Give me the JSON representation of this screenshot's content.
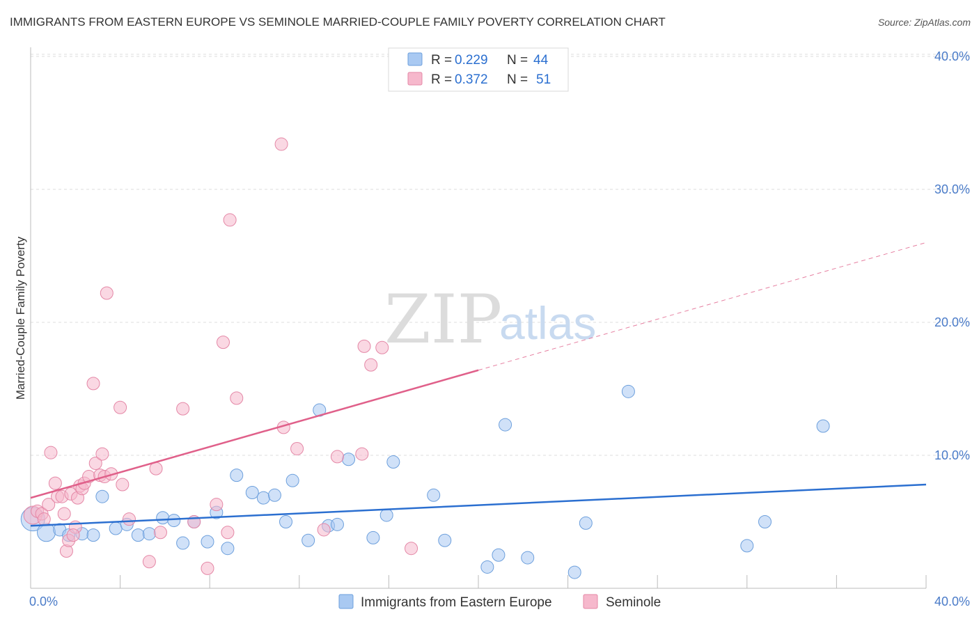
{
  "title": "IMMIGRANTS FROM EASTERN EUROPE VS SEMINOLE MARRIED-COUPLE FAMILY POVERTY CORRELATION CHART",
  "source": "Source: ZipAtlas.com",
  "watermark": {
    "zip": "ZIP",
    "atlas": "atlas"
  },
  "colors": {
    "blue_fill": "#a9c9f2",
    "blue_stroke": "#6c9fdc",
    "blue_line": "#2b6fd0",
    "pink_fill": "#f6b8cc",
    "pink_stroke": "#e487a6",
    "pink_line": "#e0608a",
    "grid": "#dddddd",
    "tick_text": "#4a7bc8"
  },
  "legend": {
    "rows": [
      {
        "r_label": "R =",
        "r_value": "0.229",
        "n_label": "N =",
        "n_value": "44",
        "series": "blue"
      },
      {
        "r_label": "R =",
        "r_value": "0.372",
        "n_label": "N =",
        "n_value": "51",
        "series": "pink"
      }
    ]
  },
  "bottom_legend": [
    {
      "label": "Immigrants from Eastern Europe",
      "series": "blue"
    },
    {
      "label": "Seminole",
      "series": "pink"
    }
  ],
  "chart_data": {
    "type": "scatter",
    "title": "IMMIGRANTS FROM EASTERN EUROPE VS SEMINOLE MARRIED-COUPLE FAMILY POVERTY CORRELATION CHART",
    "xlabel": "",
    "ylabel": "Married-Couple Family Poverty",
    "xlim": [
      0,
      40
    ],
    "ylim": [
      0,
      42
    ],
    "x_tick_labels": [
      {
        "value": 0,
        "label": "0.0%"
      },
      {
        "value": 40,
        "label": "40.0%"
      }
    ],
    "y_tick_labels": [
      {
        "value": 10,
        "label": "10.0%"
      },
      {
        "value": 20,
        "label": "20.0%"
      },
      {
        "value": 30,
        "label": "30.0%"
      },
      {
        "value": 40,
        "label": "40.0%"
      }
    ],
    "x_minor_ticks": [
      0,
      4,
      8,
      12,
      16,
      20,
      24,
      28,
      32,
      36,
      40
    ],
    "grid": true,
    "series": [
      {
        "name": "Immigrants from Eastern Europe",
        "color": "blue",
        "R": 0.229,
        "N": 44,
        "trend": {
          "x1": 0,
          "y1": 4.7,
          "x2": 40,
          "y2": 7.8,
          "dashed_from": null
        },
        "points": [
          {
            "x": 0.1,
            "y": 5.2,
            "s": 3
          },
          {
            "x": 0.7,
            "y": 4.2,
            "s": 2
          },
          {
            "x": 1.3,
            "y": 4.4,
            "s": 1
          },
          {
            "x": 1.7,
            "y": 4.0,
            "s": 1
          },
          {
            "x": 2.3,
            "y": 4.1,
            "s": 1
          },
          {
            "x": 2.8,
            "y": 4.0,
            "s": 1
          },
          {
            "x": 3.2,
            "y": 6.9,
            "s": 1
          },
          {
            "x": 3.8,
            "y": 4.5,
            "s": 1
          },
          {
            "x": 4.3,
            "y": 4.8,
            "s": 1
          },
          {
            "x": 4.8,
            "y": 4.0,
            "s": 1
          },
          {
            "x": 5.3,
            "y": 4.1,
            "s": 1
          },
          {
            "x": 5.9,
            "y": 5.3,
            "s": 1
          },
          {
            "x": 6.4,
            "y": 5.1,
            "s": 1
          },
          {
            "x": 6.8,
            "y": 3.4,
            "s": 1
          },
          {
            "x": 7.3,
            "y": 5.0,
            "s": 1
          },
          {
            "x": 7.9,
            "y": 3.5,
            "s": 1
          },
          {
            "x": 8.3,
            "y": 5.7,
            "s": 1
          },
          {
            "x": 8.8,
            "y": 3.0,
            "s": 1
          },
          {
            "x": 9.2,
            "y": 8.5,
            "s": 1
          },
          {
            "x": 9.9,
            "y": 7.2,
            "s": 1
          },
          {
            "x": 10.4,
            "y": 6.8,
            "s": 1
          },
          {
            "x": 10.9,
            "y": 7.0,
            "s": 1
          },
          {
            "x": 11.4,
            "y": 5.0,
            "s": 1
          },
          {
            "x": 11.7,
            "y": 8.1,
            "s": 1
          },
          {
            "x": 12.4,
            "y": 3.6,
            "s": 1
          },
          {
            "x": 12.9,
            "y": 13.4,
            "s": 1
          },
          {
            "x": 13.3,
            "y": 4.7,
            "s": 1
          },
          {
            "x": 13.7,
            "y": 4.8,
            "s": 1
          },
          {
            "x": 14.2,
            "y": 9.7,
            "s": 1
          },
          {
            "x": 15.3,
            "y": 3.8,
            "s": 1
          },
          {
            "x": 15.9,
            "y": 5.5,
            "s": 1
          },
          {
            "x": 16.2,
            "y": 9.5,
            "s": 1
          },
          {
            "x": 18.0,
            "y": 7.0,
            "s": 1
          },
          {
            "x": 18.5,
            "y": 3.6,
            "s": 1
          },
          {
            "x": 20.4,
            "y": 1.6,
            "s": 1
          },
          {
            "x": 20.9,
            "y": 2.5,
            "s": 1
          },
          {
            "x": 21.2,
            "y": 12.3,
            "s": 1
          },
          {
            "x": 22.2,
            "y": 2.3,
            "s": 1
          },
          {
            "x": 24.3,
            "y": 1.2,
            "s": 1
          },
          {
            "x": 24.8,
            "y": 4.9,
            "s": 1
          },
          {
            "x": 26.7,
            "y": 14.8,
            "s": 1
          },
          {
            "x": 32.0,
            "y": 3.2,
            "s": 1
          },
          {
            "x": 32.8,
            "y": 5.0,
            "s": 1
          },
          {
            "x": 35.4,
            "y": 12.2,
            "s": 1
          }
        ]
      },
      {
        "name": "Seminole",
        "color": "pink",
        "R": 0.372,
        "N": 51,
        "trend": {
          "x1": 0,
          "y1": 6.8,
          "x2": 40,
          "y2": 26.0,
          "dashed_from": 20.0
        },
        "points": [
          {
            "x": 0.1,
            "y": 5.5,
            "s": 2
          },
          {
            "x": 0.3,
            "y": 5.8,
            "s": 1
          },
          {
            "x": 0.5,
            "y": 5.6,
            "s": 1
          },
          {
            "x": 0.8,
            "y": 6.3,
            "s": 1
          },
          {
            "x": 0.9,
            "y": 10.2,
            "s": 1
          },
          {
            "x": 1.1,
            "y": 7.9,
            "s": 1
          },
          {
            "x": 1.2,
            "y": 6.9,
            "s": 1
          },
          {
            "x": 1.4,
            "y": 6.9,
            "s": 1
          },
          {
            "x": 1.5,
            "y": 5.6,
            "s": 1
          },
          {
            "x": 1.6,
            "y": 2.8,
            "s": 1
          },
          {
            "x": 1.7,
            "y": 3.6,
            "s": 1
          },
          {
            "x": 1.8,
            "y": 7.1,
            "s": 1
          },
          {
            "x": 2.0,
            "y": 4.6,
            "s": 1
          },
          {
            "x": 2.1,
            "y": 6.8,
            "s": 1
          },
          {
            "x": 2.2,
            "y": 7.7,
            "s": 1
          },
          {
            "x": 2.3,
            "y": 7.5,
            "s": 1
          },
          {
            "x": 2.4,
            "y": 7.9,
            "s": 1
          },
          {
            "x": 2.6,
            "y": 8.4,
            "s": 1
          },
          {
            "x": 2.8,
            "y": 15.4,
            "s": 1
          },
          {
            "x": 2.9,
            "y": 9.4,
            "s": 1
          },
          {
            "x": 3.1,
            "y": 8.5,
            "s": 1
          },
          {
            "x": 3.2,
            "y": 10.1,
            "s": 1
          },
          {
            "x": 3.3,
            "y": 8.4,
            "s": 1
          },
          {
            "x": 3.4,
            "y": 22.2,
            "s": 1
          },
          {
            "x": 3.6,
            "y": 8.6,
            "s": 1
          },
          {
            "x": 4.0,
            "y": 13.6,
            "s": 1
          },
          {
            "x": 4.1,
            "y": 7.8,
            "s": 1
          },
          {
            "x": 4.4,
            "y": 5.2,
            "s": 1
          },
          {
            "x": 5.3,
            "y": 2.0,
            "s": 1
          },
          {
            "x": 5.6,
            "y": 9.0,
            "s": 1
          },
          {
            "x": 5.8,
            "y": 4.2,
            "s": 1
          },
          {
            "x": 6.8,
            "y": 13.5,
            "s": 1
          },
          {
            "x": 7.3,
            "y": 5.0,
            "s": 1
          },
          {
            "x": 7.9,
            "y": 1.5,
            "s": 1
          },
          {
            "x": 8.3,
            "y": 6.3,
            "s": 1
          },
          {
            "x": 8.6,
            "y": 18.5,
            "s": 1
          },
          {
            "x": 8.8,
            "y": 4.2,
            "s": 1
          },
          {
            "x": 8.9,
            "y": 27.7,
            "s": 1
          },
          {
            "x": 9.2,
            "y": 14.3,
            "s": 1
          },
          {
            "x": 11.2,
            "y": 33.4,
            "s": 1
          },
          {
            "x": 11.3,
            "y": 12.1,
            "s": 1
          },
          {
            "x": 11.9,
            "y": 10.5,
            "s": 1
          },
          {
            "x": 13.1,
            "y": 4.4,
            "s": 1
          },
          {
            "x": 13.7,
            "y": 9.9,
            "s": 1
          },
          {
            "x": 14.8,
            "y": 10.1,
            "s": 1
          },
          {
            "x": 14.9,
            "y": 18.2,
            "s": 1
          },
          {
            "x": 15.2,
            "y": 16.8,
            "s": 1
          },
          {
            "x": 15.7,
            "y": 18.1,
            "s": 1
          },
          {
            "x": 17.0,
            "y": 3.0,
            "s": 1
          },
          {
            "x": 0.6,
            "y": 5.2,
            "s": 1
          },
          {
            "x": 1.9,
            "y": 4.0,
            "s": 1
          }
        ]
      }
    ]
  }
}
